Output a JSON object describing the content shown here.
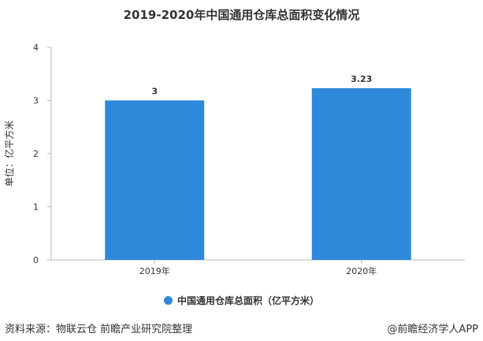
{
  "footer": {
    "source": "资料来源：物联云仓 前瞻产业研究院整理",
    "credit": "@前瞻经济学人APP"
  },
  "chart_data": {
    "type": "bar",
    "title": "2019-2020年中国通用仓库总面积变化情况",
    "xlabel": "",
    "ylabel": "单位：亿平方米",
    "categories": [
      "2019年",
      "2020年"
    ],
    "series": [
      {
        "name": "中国通用仓库总面积（亿平方米）",
        "values": [
          3,
          3.23
        ],
        "labels": [
          "3",
          "3.23"
        ]
      }
    ],
    "ylim": [
      0,
      4
    ],
    "yticks": [
      0,
      1,
      2,
      3,
      4
    ],
    "grid": false,
    "legend": "bottom",
    "colors": {
      "bar": "#2e89db",
      "axis": "#bbbbbb",
      "text": "#333333"
    }
  }
}
